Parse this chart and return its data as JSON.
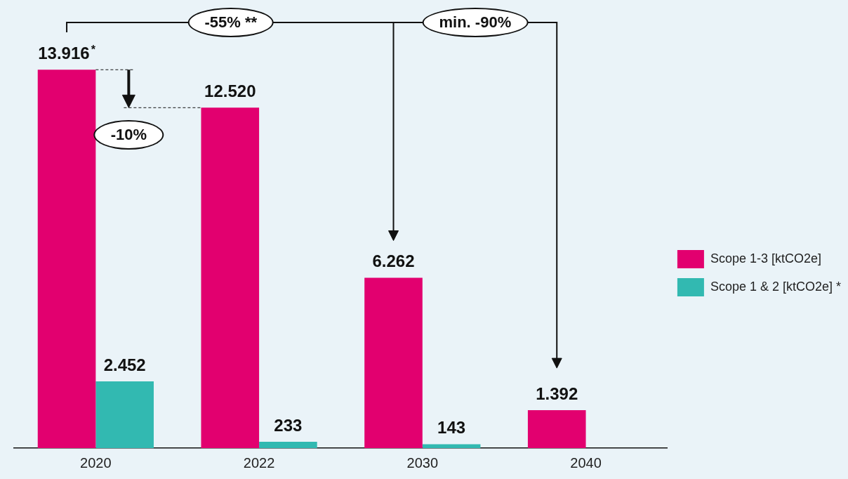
{
  "chart_data": {
    "type": "bar",
    "categories": [
      "2020",
      "2022",
      "2030",
      "2040"
    ],
    "series": [
      {
        "name": "Scope 1-3 [ktCO2e]",
        "color": "#e2006f",
        "values": [
          13916,
          12520,
          6262,
          1392
        ],
        "value_labels": [
          "13.916$^{*}$",
          "12.520",
          "6.262",
          "1.392"
        ]
      },
      {
        "name": "Scope 1 & 2 [ktCO2e] *",
        "color": "#32b9b1",
        "values": [
          2452,
          233,
          143,
          null
        ],
        "value_labels": [
          "2.452",
          "233",
          "143",
          null
        ]
      }
    ],
    "annotations": [
      "-55% **",
      "min. -90%",
      "-10%"
    ],
    "legend": "right",
    "grid": false
  }
}
